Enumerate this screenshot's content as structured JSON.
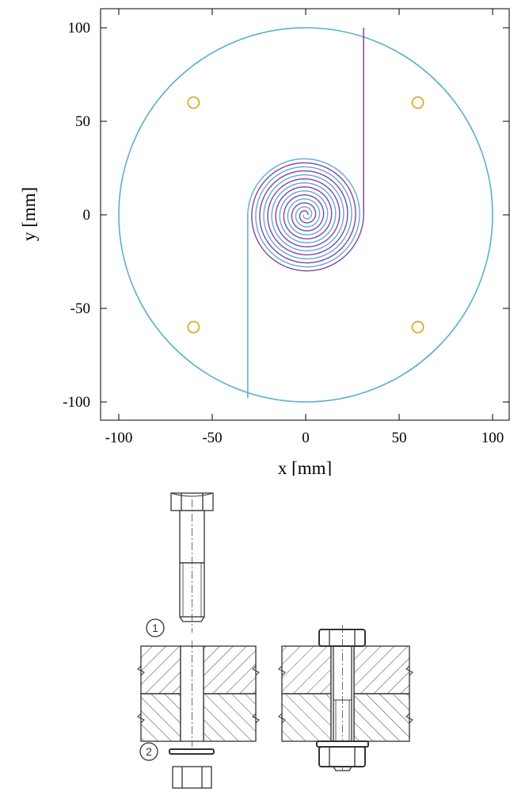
{
  "chart_data": {
    "type": "line",
    "xlabel": "x [mm]",
    "ylabel": "y [mm]",
    "xlim": [
      -100,
      100
    ],
    "ylim": [
      -110,
      110
    ],
    "x_ticks": [
      -100,
      -50,
      0,
      50,
      100
    ],
    "y_ticks": [
      100,
      50,
      0,
      -50,
      -100
    ],
    "grid": false,
    "colors": {
      "outer": "#5aaed0",
      "spiral_a": "#5aaed0",
      "spiral_b": "#8a3ea8",
      "holes": "#d9a21a"
    },
    "outer_circle": {
      "cx": 0,
      "cy": 0,
      "r": 100
    },
    "spiral": {
      "inner_radius": 1,
      "outer_radius": 31,
      "turns": 7,
      "pitch_mm": 4.3
    },
    "feed_lines": [
      {
        "color_key": "spiral_b",
        "x": [
          31,
          31
        ],
        "y": [
          0,
          100
        ]
      },
      {
        "color_key": "spiral_a",
        "x": [
          -31,
          -31
        ],
        "y": [
          0,
          -98
        ]
      }
    ],
    "holes": [
      {
        "x": -60,
        "y": 60,
        "r": 3
      },
      {
        "x": 60,
        "y": 60,
        "r": 3
      },
      {
        "x": -60,
        "y": -60,
        "r": 3
      },
      {
        "x": 60,
        "y": -60,
        "r": 3
      }
    ]
  },
  "drawing": {
    "callout_1": "1",
    "callout_2": "2"
  }
}
